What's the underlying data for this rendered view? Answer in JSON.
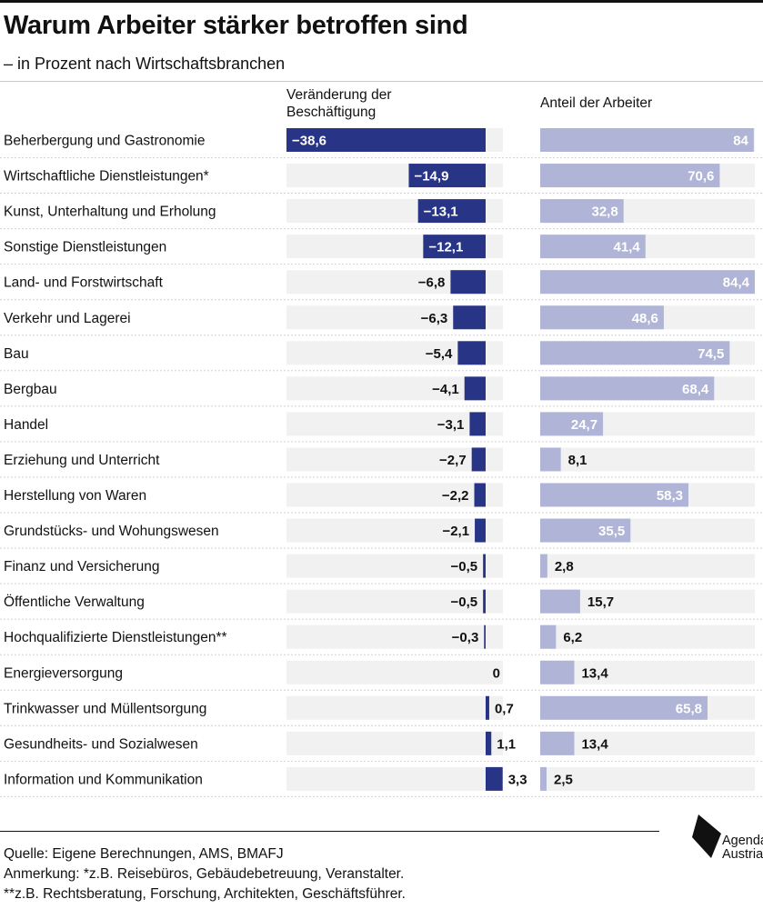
{
  "header": {
    "title": "Warum Arbeiter stärker betroffen sind",
    "subtitle": "– in Prozent nach Wirtschaftsbranchen"
  },
  "columns": {
    "change_label": "Veränderung der Beschäftigung",
    "share_label": "Anteil der Arbeiter"
  },
  "colors": {
    "dark_bar": "#283486",
    "light_bar": "#b0b4d6",
    "track": "#f1f1f1",
    "row_divider": "#d2d2d2"
  },
  "chart_data": {
    "type": "bar",
    "categories": [
      "Beherbergung und Gastronomie",
      "Wirtschaftliche Dienstleistungen*",
      "Kunst, Unterhaltung und Erholung",
      "Sonstige Dienstleistungen",
      "Land- und Forstwirtschaft",
      "Verkehr und Lagerei",
      "Bau",
      "Bergbau",
      "Handel",
      "Erziehung und Unterricht",
      "Herstellung von Waren",
      "Grundstücks- und Wohungswesen",
      "Finanz und Versicherung",
      "Öffentliche Verwaltung",
      "Hochqualifizierte Dienstleistungen**",
      "Energieversorgung",
      "Trinkwasser und Müllentsorgung",
      "Gesundheits- und Sozialwesen",
      "Information und Kommunikation"
    ],
    "series": [
      {
        "name": "Veränderung der Beschäftigung",
        "values": [
          -38.6,
          -14.9,
          -13.1,
          -12.1,
          -6.8,
          -6.3,
          -5.4,
          -4.1,
          -3.1,
          -2.7,
          -2.2,
          -2.1,
          -0.5,
          -0.5,
          -0.3,
          0,
          0.7,
          1.1,
          3.3
        ],
        "labels": [
          "−38,6",
          "−14,9",
          "−13,1",
          "−12,1",
          "−6,8",
          "−6,3",
          "−5,4",
          "−4,1",
          "−3,1",
          "−2,7",
          "−2,2",
          "−2,1",
          "−0,5",
          "−0,5",
          "−0,3",
          "0",
          "0,7",
          "1,1",
          "3,3"
        ]
      },
      {
        "name": "Anteil der Arbeiter",
        "values": [
          84,
          70.6,
          32.8,
          41.4,
          84.4,
          48.6,
          74.5,
          68.4,
          24.7,
          8.1,
          58.3,
          35.5,
          2.8,
          15.7,
          6.2,
          13.4,
          65.8,
          13.4,
          2.5
        ],
        "labels": [
          "84",
          "70,6",
          "32,8",
          "41,4",
          "84,4",
          "48,6",
          "74,5",
          "68,4",
          "24,7",
          "8,1",
          "58,3",
          "35,5",
          "2,8",
          "15,7",
          "6,2",
          "13,4",
          "65,8",
          "13,4",
          "2,5"
        ]
      }
    ]
  },
  "footer": {
    "source": "Quelle: Eigene Berechnungen, AMS, BMAFJ",
    "note1": "Anmerkung: *z.B. Reisebüros, Gebäudebetreuung, Veranstalter.",
    "note2": "**z.B. Rechtsberatung, Forschung, Architekten, Geschäftsführer.",
    "logo_line1": "Agenda",
    "logo_line2": "Austria"
  }
}
